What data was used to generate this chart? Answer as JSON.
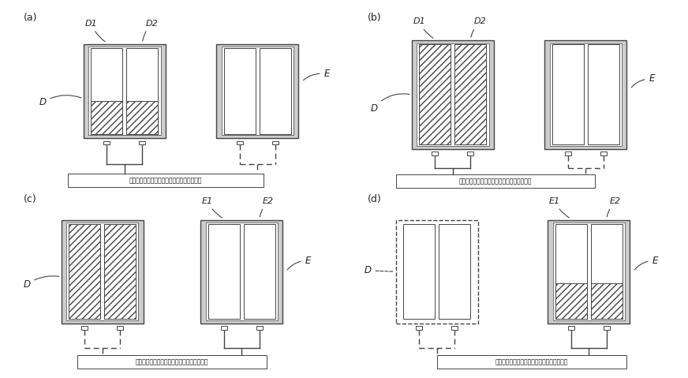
{
  "bg_color": "#ffffff",
  "lc": "#444444",
  "panel_labels": [
    "(a)",
    "(b)",
    "(c)",
    "(d)"
  ],
  "box_label": "演算装置内で実行されている処理プログラム",
  "hatch": "////",
  "lw_outer": 1.0,
  "lw_inner": 0.7,
  "lw_wire": 1.0
}
